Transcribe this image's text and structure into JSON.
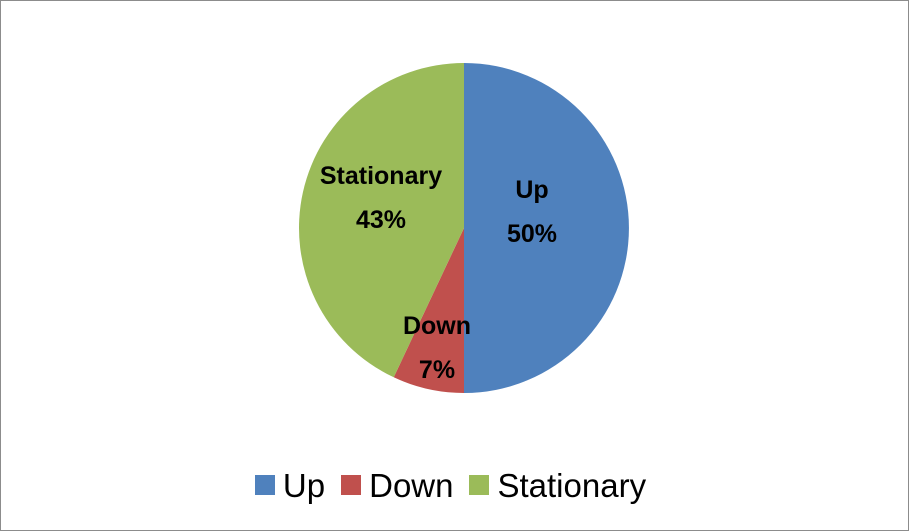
{
  "chart_data": {
    "type": "pie",
    "title": "",
    "categories": [
      "Up",
      "Down",
      "Stationary"
    ],
    "values": [
      50,
      7,
      43
    ],
    "value_format": "percent",
    "colors": [
      "#4F81BD",
      "#C0504D",
      "#9BBB59"
    ],
    "data_labels": [
      {
        "category": "Up",
        "percent": "50%"
      },
      {
        "category": "Down",
        "percent": "7%"
      },
      {
        "category": "Stationary",
        "percent": "43%"
      }
    ],
    "legend": {
      "placement": "bottom",
      "entries": [
        "Up",
        "Down",
        "Stationary"
      ]
    }
  }
}
